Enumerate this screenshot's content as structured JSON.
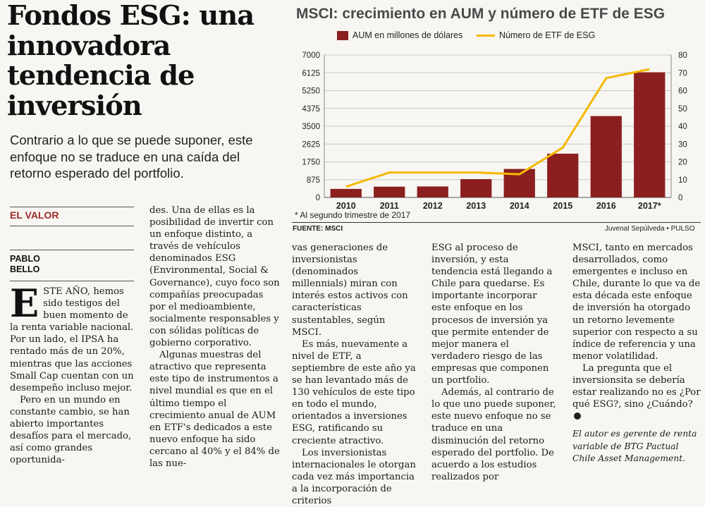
{
  "article": {
    "headline": "Fondos ESG: una innovadora tendencia de inversión",
    "subhead": "Contrario a lo que se puede suponer, este enfoque no se traduce en una caída del retorno esperado del portfolio.",
    "section": "EL VALOR",
    "author": "PABLO\nBELLO",
    "col1": {
      "dropcap": "E",
      "p1_lead": "STE AÑO,",
      "p1_rest": " hemos sido testigos del buen momento de la renta variable nacional. Por un lado, el IPSA ha rentado más de un 20%, mientras que las acciones Small Cap cuentan con un desempeño incluso mejor.",
      "p2": "Pero en un mundo en constante cambio, se han abierto importantes desafíos para el mercado, así como grandes oportunida-"
    },
    "col2": {
      "p1": "des. Una de ellas es la posibilidad de invertir con un enfoque distinto, a través de vehículos denominados ESG (Environmental, Social & Governance), cuyo foco son compañías preocupadas por el medioambiente, socialmente responsables y con sólidas políticas de gobierno corporativo.",
      "p2": "Algunas muestras del atractivo que representa este tipo de instrumentos a nivel mundial es que en el último tiempo el crecimiento anual de AUM en ETF's dedicados a este nuevo enfoque ha sido cercano al 40% y el 84% de las nue-"
    },
    "col3": {
      "p1": "vas generaciones de inversionistas (denominados millennials) miran con interés estos activos con características sustentables, según MSCI.",
      "p2": "Es más, nuevamente a nivel de ETF, a septiembre de este año ya se han levantado más de 130 vehículos de este tipo en todo el mundo, orientados a inversiones ESG, ratificando su creciente atractivo.",
      "p3": "Los inversionistas internacionales le otorgan cada vez más importancia a la incorporación de criterios"
    },
    "col4": {
      "p1": "ESG al proceso de inversión, y esta tendencia está llegando a Chile para quedarse. Es importante incorporar este enfoque en los procesos de inversión ya que permite entender de mejor manera el verdadero riesgo de las empresas que componen un portfolio.",
      "p2": "Además, al contrario de lo que uno puede suponer, este nuevo enfoque no se traduce en una disminución del retorno esperado del portfolio. De acuerdo a los estudios realizados por"
    },
    "col5": {
      "p1": "MSCI, tanto en mercados desarrollados, como emergentes e incluso en Chile, durante lo que va de esta década este enfoque de inversión ha otorgado un retorno levemente superior con respecto a su índice de referencia y una menor volatilidad.",
      "p2": "La pregunta que el inversionsita se debería estar realizando no es ¿Por qué ESG?, sino ¿Cuándo?",
      "note": "El autor es gerente de renta variable de BTG Pactual Chile Asset Management."
    }
  },
  "chart_data": {
    "type": "bar",
    "title": "MSCI: crecimiento en AUM y número de ETF de ESG",
    "categories": [
      "2010",
      "2011",
      "2012",
      "2013",
      "2014",
      "2015",
      "2016",
      "2017*"
    ],
    "series": [
      {
        "name": "AUM en millones de dólares",
        "type": "bar",
        "axis": "left",
        "color": "#8b1f1f",
        "values": [
          420,
          530,
          540,
          900,
          1400,
          2150,
          4000,
          6150
        ]
      },
      {
        "name": "Número de ETF de ESG",
        "type": "line",
        "axis": "right",
        "color": "#f5b800",
        "values": [
          6,
          14,
          14,
          14,
          13,
          28,
          67,
          72
        ]
      }
    ],
    "left_axis": {
      "ylim": [
        0,
        7000
      ],
      "ticks": [
        "0",
        "875",
        "1750",
        "2625",
        "3500",
        "4375",
        "5250",
        "6125",
        "7000"
      ]
    },
    "right_axis": {
      "ylim": [
        0,
        80
      ],
      "ticks": [
        "0",
        "10",
        "20",
        "30",
        "40",
        "50",
        "60",
        "70",
        "80"
      ]
    },
    "grid": true,
    "legend_placement": "top",
    "footnote": "* Al segundo trimestre de 2017",
    "source": "FUENTE: MSCI",
    "credit": "Juvenal Sepúlveda • PULSO"
  }
}
